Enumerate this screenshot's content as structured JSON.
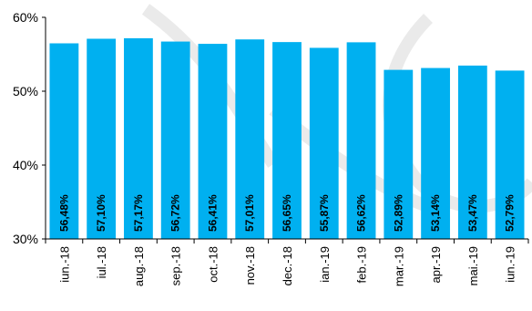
{
  "chart_data": {
    "type": "bar",
    "title": "",
    "xlabel": "",
    "ylabel": "",
    "categories": [
      "iun.-18",
      "iul.-18",
      "aug.-18",
      "sep.-18",
      "oct.-18",
      "nov.-18",
      "dec.-18",
      "ian.-19",
      "feb.-19",
      "mar.-19",
      "apr.-19",
      "mai.-19",
      "iun.-19"
    ],
    "values": [
      56.48,
      57.1,
      57.17,
      56.72,
      56.41,
      57.01,
      56.65,
      55.87,
      56.62,
      52.89,
      53.14,
      53.47,
      52.79
    ],
    "data_labels": [
      "56,48%",
      "57,10%",
      "57,17%",
      "56,72%",
      "56,41%",
      "57,01%",
      "56,65%",
      "55,87%",
      "56,62%",
      "52,89%",
      "53,14%",
      "53,47%",
      "52,79%"
    ],
    "ylim": [
      30,
      60
    ],
    "yticks": [
      30,
      40,
      50,
      60
    ],
    "ytick_labels": [
      "30%",
      "40%",
      "50%",
      "60%"
    ],
    "bar_color": "#00B0F0",
    "grid": false,
    "legend": "none"
  }
}
